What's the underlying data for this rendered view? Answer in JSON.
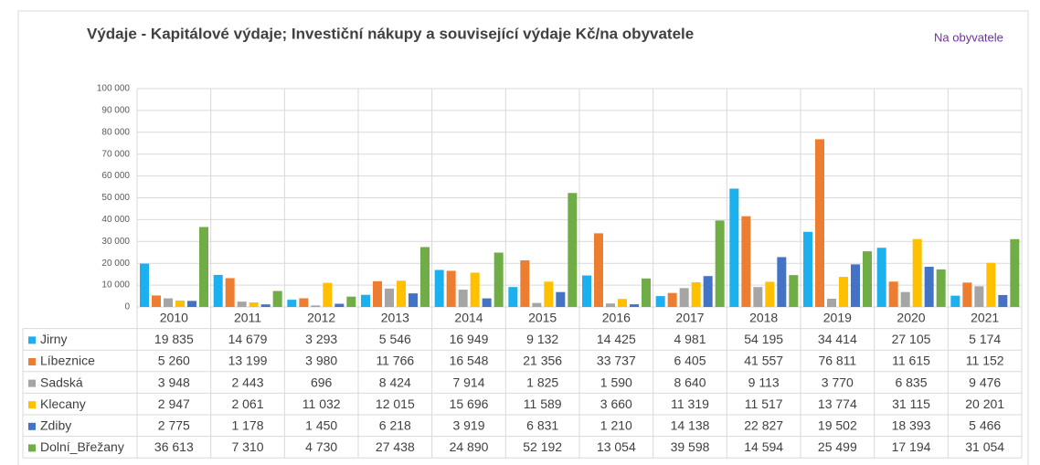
{
  "chart_data": {
    "type": "bar",
    "title": "Výdaje - Kapitálové výdaje; Investiční nákupy a související výdaje Kč/na obyvatele",
    "annotation": "Na obyvatele",
    "categories": [
      "2010",
      "2011",
      "2012",
      "2013",
      "2014",
      "2015",
      "2016",
      "2017",
      "2018",
      "2019",
      "2020",
      "2021"
    ],
    "series": [
      {
        "name": "Jirny",
        "color": "#1cb0ef",
        "values": [
          19835,
          14679,
          3293,
          5546,
          16949,
          9132,
          14425,
          4981,
          54195,
          34414,
          27105,
          5174
        ],
        "value_labels": [
          "19 835",
          "14 679",
          "3 293",
          "5 546",
          "16 949",
          "9 132",
          "14 425",
          "4 981",
          "54 195",
          "34 414",
          "27 105",
          "5 174"
        ]
      },
      {
        "name": "Líbeznice",
        "color": "#ed7d31",
        "values": [
          5260,
          13199,
          3980,
          11766,
          16548,
          21356,
          33737,
          6405,
          41557,
          76811,
          11615,
          11152
        ],
        "value_labels": [
          "5 260",
          "13 199",
          "3 980",
          "11 766",
          "16 548",
          "21 356",
          "33 737",
          "6 405",
          "41 557",
          "76 811",
          "11 615",
          "11 152"
        ]
      },
      {
        "name": "Sadská",
        "color": "#a5a5a5",
        "values": [
          3948,
          2443,
          696,
          8424,
          7914,
          1825,
          1590,
          8640,
          9113,
          3770,
          6835,
          9476
        ],
        "value_labels": [
          "3 948",
          "2 443",
          "696",
          "8 424",
          "7 914",
          "1 825",
          "1 590",
          "8 640",
          "9 113",
          "3 770",
          "6 835",
          "9 476"
        ]
      },
      {
        "name": "Klecany",
        "color": "#ffc000",
        "values": [
          2947,
          2061,
          11032,
          12015,
          15696,
          11589,
          3660,
          11319,
          11517,
          13774,
          31115,
          20201
        ],
        "value_labels": [
          "2 947",
          "2 061",
          "11 032",
          "12 015",
          "15 696",
          "11 589",
          "3 660",
          "11 319",
          "11 517",
          "13 774",
          "31 115",
          "20 201"
        ]
      },
      {
        "name": "Zdiby",
        "color": "#4472c4",
        "values": [
          2775,
          1178,
          1450,
          6218,
          3919,
          6831,
          1210,
          14138,
          22827,
          19502,
          18393,
          5466
        ],
        "value_labels": [
          "2 775",
          "1 178",
          "1 450",
          "6 218",
          "3 919",
          "6 831",
          "1 210",
          "14 138",
          "22 827",
          "19 502",
          "18 393",
          "5 466"
        ]
      },
      {
        "name": "Dolní_Břežany",
        "color": "#70ad47",
        "values": [
          36613,
          7310,
          4730,
          27438,
          24890,
          52192,
          13054,
          39598,
          14594,
          25499,
          17194,
          31054
        ],
        "value_labels": [
          "36 613",
          "7 310",
          "4 730",
          "27 438",
          "24 890",
          "52 192",
          "13 054",
          "39 598",
          "14 594",
          "25 499",
          "17 194",
          "31 054"
        ]
      }
    ],
    "ylim": [
      0,
      100000
    ],
    "yticks": [
      0,
      {
        "value": 10000,
        "label": "10 000"
      },
      {
        "value": 20000,
        "label": "20 000"
      },
      {
        "value": 30000,
        "label": "30 000"
      },
      {
        "value": 40000,
        "label": "40 000"
      },
      {
        "value": 50000,
        "label": "50 000"
      },
      {
        "value": 60000,
        "label": "60 000"
      },
      {
        "value": 70000,
        "label": "70 000"
      },
      {
        "value": 80000,
        "label": "80 000"
      },
      {
        "value": 90000,
        "label": "90 000"
      },
      {
        "value": 100000,
        "label": "100 000"
      }
    ],
    "grid": true
  }
}
